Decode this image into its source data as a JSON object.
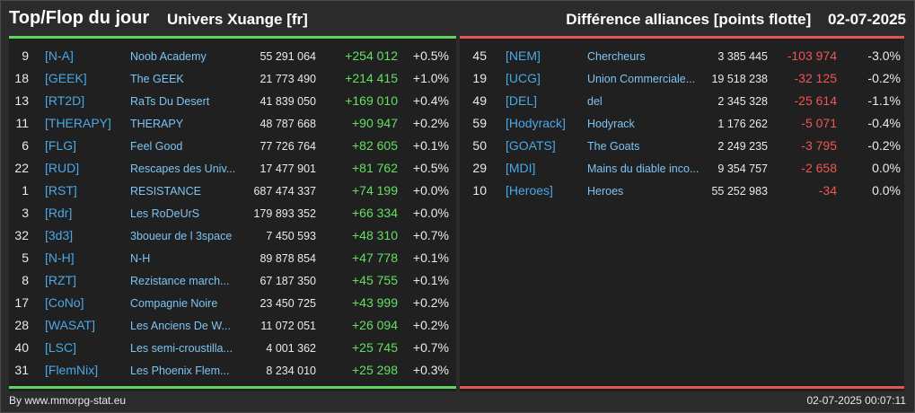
{
  "header": {
    "title": "Top/Flop du jour",
    "universe": "Univers Xuange [fr]",
    "section": "Différence alliances [points flotte]",
    "date": "02-07-2025"
  },
  "top": [
    {
      "rank": "9",
      "tag": "[N-A]",
      "name": "Noob Academy",
      "points": "55 291 064",
      "diff": "+254 012",
      "pct": "+0.5%"
    },
    {
      "rank": "18",
      "tag": "[GEEK]",
      "name": "The GEEK",
      "points": "21 773 490",
      "diff": "+214 415",
      "pct": "+1.0%"
    },
    {
      "rank": "13",
      "tag": "[RT2D]",
      "name": "RaTs Du Desert",
      "points": "41 839 050",
      "diff": "+169 010",
      "pct": "+0.4%"
    },
    {
      "rank": "11",
      "tag": "[THERAPY]",
      "name": "THERAPY",
      "points": "48 787 668",
      "diff": "+90 947",
      "pct": "+0.2%"
    },
    {
      "rank": "6",
      "tag": "[FLG]",
      "name": "Feel Good",
      "points": "77 726 764",
      "diff": "+82 605",
      "pct": "+0.1%"
    },
    {
      "rank": "22",
      "tag": "[RUD]",
      "name": "Rescapes des Univ...",
      "points": "17 477 901",
      "diff": "+81 762",
      "pct": "+0.5%"
    },
    {
      "rank": "1",
      "tag": "[RST]",
      "name": "RESISTANCE",
      "points": "687 474 337",
      "diff": "+74 199",
      "pct": "+0.0%"
    },
    {
      "rank": "3",
      "tag": "[Rdr]",
      "name": "Les RoDeUrS",
      "points": "179 893 352",
      "diff": "+66 334",
      "pct": "+0.0%"
    },
    {
      "rank": "32",
      "tag": "[3d3]",
      "name": "3boueur de l 3space",
      "points": "7 450 593",
      "diff": "+48 310",
      "pct": "+0.7%"
    },
    {
      "rank": "5",
      "tag": "[N-H]",
      "name": "N-H",
      "points": "89 878 854",
      "diff": "+47 778",
      "pct": "+0.1%"
    },
    {
      "rank": "8",
      "tag": "[RZT]",
      "name": "Rezistance march...",
      "points": "67 187 350",
      "diff": "+45 755",
      "pct": "+0.1%"
    },
    {
      "rank": "17",
      "tag": "[CoNo]",
      "name": "Compagnie Noire",
      "points": "23 450 725",
      "diff": "+43 999",
      "pct": "+0.2%"
    },
    {
      "rank": "28",
      "tag": "[WASAT]",
      "name": "Les Anciens De W...",
      "points": "11 072 051",
      "diff": "+26 094",
      "pct": "+0.2%"
    },
    {
      "rank": "40",
      "tag": "[LSC]",
      "name": "Les semi-croustilla...",
      "points": "4 001 362",
      "diff": "+25 745",
      "pct": "+0.7%"
    },
    {
      "rank": "31",
      "tag": "[FlemNix]",
      "name": "Les Phoenix Flem...",
      "points": "8 234 010",
      "diff": "+25 298",
      "pct": "+0.3%"
    }
  ],
  "flop": [
    {
      "rank": "45",
      "tag": "[NEM]",
      "name": "Chercheurs",
      "points": "3 385 445",
      "diff": "-103 974",
      "pct": "-3.0%"
    },
    {
      "rank": "19",
      "tag": "[UCG]",
      "name": "Union Commerciale...",
      "points": "19 518 238",
      "diff": "-32 125",
      "pct": "-0.2%"
    },
    {
      "rank": "49",
      "tag": "[DEL]",
      "name": "del",
      "points": "2 345 328",
      "diff": "-25 614",
      "pct": "-1.1%"
    },
    {
      "rank": "59",
      "tag": "[Hodyrack]",
      "name": "Hodyrack",
      "points": "1 176 262",
      "diff": "-5 071",
      "pct": "-0.4%"
    },
    {
      "rank": "50",
      "tag": "[GOATS]",
      "name": "The Goats",
      "points": "2 249 235",
      "diff": "-3 795",
      "pct": "-0.2%"
    },
    {
      "rank": "29",
      "tag": "[MDI]",
      "name": "Mains du diable inco...",
      "points": "9 354 757",
      "diff": "-2 658",
      "pct": "0.0%"
    },
    {
      "rank": "10",
      "tag": "[Heroes]",
      "name": "Heroes",
      "points": "55 252 983",
      "diff": "-34",
      "pct": "0.0%"
    }
  ],
  "footer": {
    "credit": "By www.mmorpg-stat.eu",
    "timestamp": "02-07-2025 00:07:11"
  },
  "colors": {
    "gain": "#62e062",
    "loss": "#f05555",
    "tag": "#4aa8e8",
    "name": "#7cc4f4"
  }
}
